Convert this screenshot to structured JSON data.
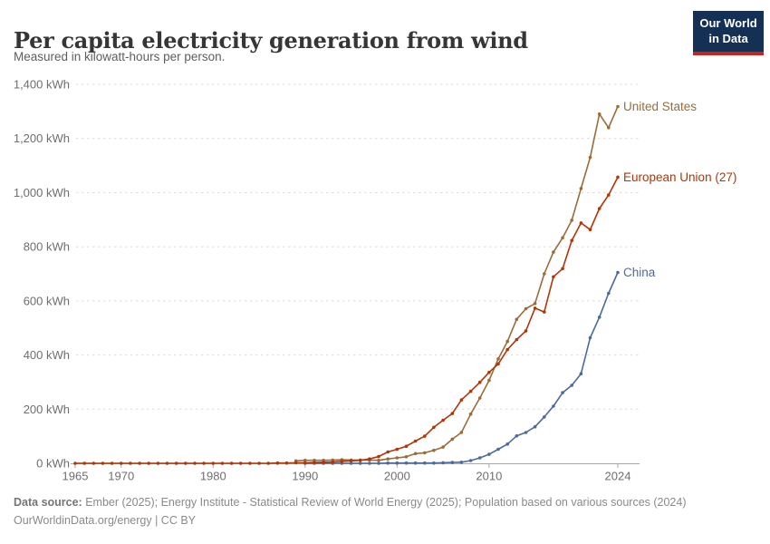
{
  "header": {
    "title": "Per capita electricity generation from wind",
    "subtitle": "Measured in kilowatt-hours per person."
  },
  "logo": {
    "line1": "Our World",
    "line2": "in Data",
    "bg_color": "#143054",
    "accent_color": "#C9241C"
  },
  "footer": {
    "source_label": "Data source:",
    "source_text": " Ember (2025); Energy Institute - Statistical Review of World Energy (2025); Population based on various sources (2024)",
    "link_text": "OurWorldinData.org/energy | CC BY"
  },
  "chart_data": {
    "type": "line",
    "title": "Per capita electricity generation from wind",
    "xlabel": "",
    "ylabel": "",
    "unit": "kWh",
    "grid": "dashed-horizontal",
    "legend_position": "end-of-line-labels",
    "x_axis": {
      "range": [
        1965,
        2024
      ],
      "ticks": [
        1965,
        1970,
        1980,
        1990,
        2000,
        2010,
        2024
      ]
    },
    "y_axis": {
      "range": [
        0,
        1400
      ],
      "ticks": [
        0,
        200,
        400,
        600,
        800,
        1000,
        1200,
        1400
      ],
      "unit": "kWh"
    },
    "series": [
      {
        "name": "United States",
        "color": "#996D39",
        "start_year": 1989,
        "values": [
          9,
          11,
          11,
          11,
          12,
          13,
          12,
          12,
          12,
          11,
          16,
          20,
          24,
          36,
          39,
          48,
          60,
          89,
          114,
          182,
          241,
          306,
          386,
          450,
          532,
          571,
          590,
          700,
          780,
          833,
          898,
          1015,
          1130,
          1290,
          1240,
          1318
        ]
      },
      {
        "name": "European Union (27)",
        "color": "#B13507",
        "start_year": 1965,
        "values": [
          0,
          0,
          0,
          0,
          0,
          0,
          0,
          0,
          0,
          0,
          0,
          0,
          0,
          0,
          0,
          0,
          0,
          0,
          0,
          0,
          0,
          0,
          1,
          1,
          2,
          2,
          3,
          4,
          5,
          7,
          9,
          11,
          16,
          25,
          42,
          52,
          63,
          82,
          100,
          133,
          159,
          184,
          234,
          266,
          299,
          336,
          367,
          420,
          457,
          489,
          573,
          559,
          689,
          719,
          823,
          888,
          863,
          941,
          991,
          1057
        ]
      },
      {
        "name": "China",
        "color": "#4C6A9C",
        "start_year": 1990,
        "values": [
          0,
          0,
          0,
          0,
          0,
          0,
          0,
          0,
          0,
          1,
          1,
          1,
          1,
          1,
          1,
          2,
          3,
          4,
          10,
          20,
          33,
          52,
          71,
          101,
          114,
          135,
          171,
          211,
          261,
          288,
          331,
          464,
          540,
          628,
          705
        ]
      }
    ]
  }
}
